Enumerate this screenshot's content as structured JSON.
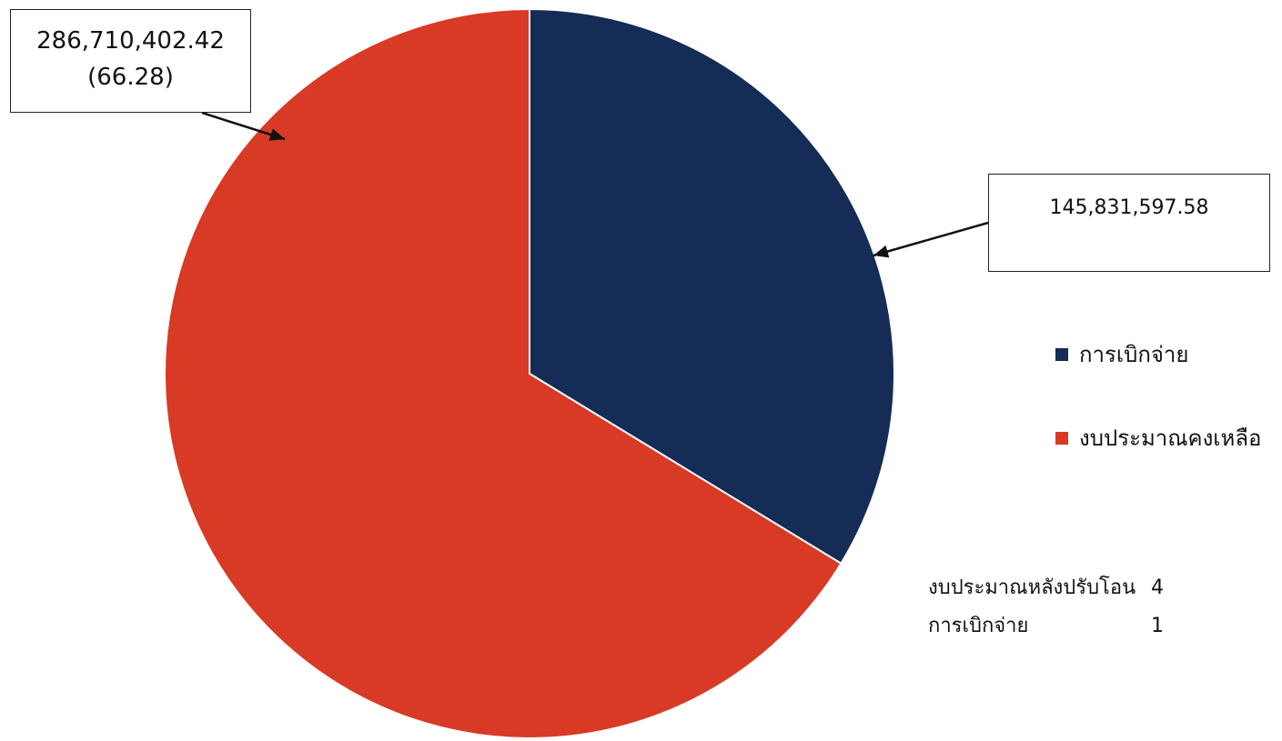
{
  "chart_data": {
    "type": "pie",
    "slices": [
      {
        "name": "การเบิกจ่าย",
        "value": 145831597.58,
        "color": "#142c56",
        "label": "145,831,597.58"
      },
      {
        "name": "งบประมาณคงเหลือ",
        "value": 286710402.42,
        "color": "#d83a25",
        "label": "286,710,402.42",
        "percent_label": "(66.28)"
      }
    ],
    "legend": [
      "การเบิกจ่าย",
      "งบประมาณคงเหลือ"
    ],
    "legend_position": "right",
    "summary": [
      {
        "label": "งบประมาณหลังปรับโอน",
        "value": "4"
      },
      {
        "label": "การเบิกจ่าย",
        "value": "1"
      }
    ]
  }
}
